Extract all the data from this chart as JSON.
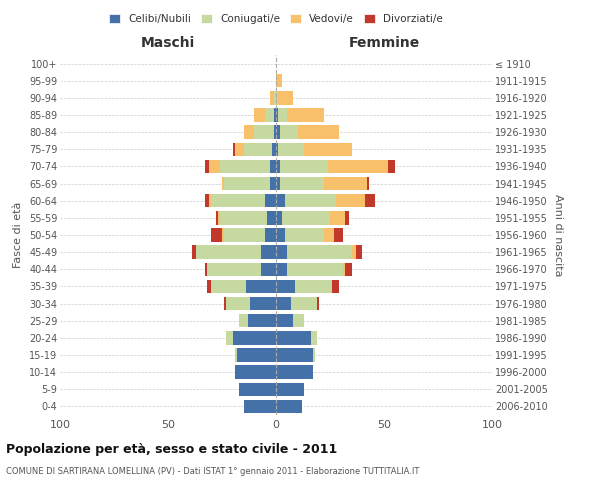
{
  "age_groups": [
    "0-4",
    "5-9",
    "10-14",
    "15-19",
    "20-24",
    "25-29",
    "30-34",
    "35-39",
    "40-44",
    "45-49",
    "50-54",
    "55-59",
    "60-64",
    "65-69",
    "70-74",
    "75-79",
    "80-84",
    "85-89",
    "90-94",
    "95-99",
    "100+"
  ],
  "birth_years": [
    "2006-2010",
    "2001-2005",
    "1996-2000",
    "1991-1995",
    "1986-1990",
    "1981-1985",
    "1976-1980",
    "1971-1975",
    "1966-1970",
    "1961-1965",
    "1956-1960",
    "1951-1955",
    "1946-1950",
    "1941-1945",
    "1936-1940",
    "1931-1935",
    "1926-1930",
    "1921-1925",
    "1916-1920",
    "1911-1915",
    "≤ 1910"
  ],
  "maschi": {
    "celibi": [
      15,
      17,
      19,
      18,
      20,
      13,
      12,
      14,
      7,
      7,
      5,
      4,
      5,
      3,
      3,
      2,
      1,
      1,
      0,
      0,
      0
    ],
    "coniugati": [
      0,
      0,
      0,
      1,
      3,
      4,
      11,
      16,
      25,
      30,
      19,
      22,
      25,
      21,
      23,
      13,
      9,
      4,
      1,
      0,
      0
    ],
    "vedovi": [
      0,
      0,
      0,
      0,
      0,
      0,
      0,
      0,
      0,
      0,
      1,
      1,
      1,
      1,
      5,
      4,
      5,
      5,
      2,
      0,
      0
    ],
    "divorziati": [
      0,
      0,
      0,
      0,
      0,
      0,
      1,
      2,
      1,
      2,
      5,
      1,
      2,
      0,
      2,
      1,
      0,
      0,
      0,
      0,
      0
    ]
  },
  "femmine": {
    "nubili": [
      12,
      13,
      17,
      17,
      16,
      8,
      7,
      9,
      5,
      5,
      4,
      3,
      4,
      2,
      2,
      1,
      2,
      1,
      0,
      0,
      0
    ],
    "coniugate": [
      0,
      0,
      0,
      1,
      3,
      5,
      12,
      17,
      26,
      30,
      18,
      22,
      24,
      20,
      22,
      12,
      8,
      4,
      1,
      0,
      0
    ],
    "vedove": [
      0,
      0,
      0,
      0,
      0,
      0,
      0,
      0,
      1,
      2,
      5,
      7,
      13,
      20,
      28,
      22,
      19,
      17,
      7,
      3,
      0
    ],
    "divorziate": [
      0,
      0,
      0,
      0,
      0,
      0,
      1,
      3,
      3,
      3,
      4,
      2,
      5,
      1,
      3,
      0,
      0,
      0,
      0,
      0,
      0
    ]
  },
  "colors": {
    "celibi": "#4472A8",
    "coniugati": "#C5D9A0",
    "vedovi": "#F9C06B",
    "divorziati": "#C0392B"
  },
  "xlim": 100,
  "title": "Popolazione per età, sesso e stato civile - 2011",
  "subtitle": "COMUNE DI SARTIRANA LOMELLINA (PV) - Dati ISTAT 1° gennaio 2011 - Elaborazione TUTTITALIA.IT",
  "ylabel_left": "Fasce di età",
  "ylabel_right": "Anni di nascita",
  "xlabel_left": "Maschi",
  "xlabel_right": "Femmine",
  "legend_labels": [
    "Celibi/Nubili",
    "Coniugati/e",
    "Vedovi/e",
    "Divorziati/e"
  ],
  "background_color": "#ffffff",
  "grid_color": "#cccccc"
}
